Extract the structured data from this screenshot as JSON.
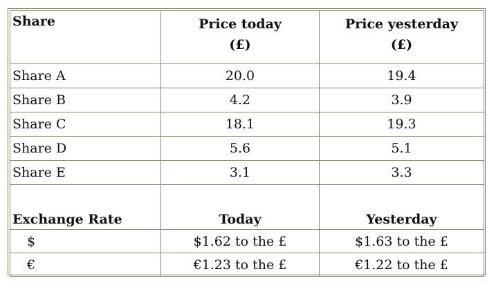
{
  "shares_table": {
    "headers": {
      "share": "Share",
      "price_today_line1": "Price today",
      "price_today_line2": "(£)",
      "price_yesterday_line1": "Price yesterday",
      "price_yesterday_line2": "(£)"
    },
    "rows": [
      {
        "name": "Share A",
        "today": "20.0",
        "yesterday": "19.4"
      },
      {
        "name": "Share B",
        "today": "4.2",
        "yesterday": "3.9"
      },
      {
        "name": "Share C",
        "today": "18.1",
        "yesterday": "19.3"
      },
      {
        "name": "Share D",
        "today": "5.6",
        "yesterday": "5.1"
      },
      {
        "name": "Share E",
        "today": "3.1",
        "yesterday": "3.3"
      }
    ]
  },
  "exchange_table": {
    "headers": {
      "label": "Exchange Rate",
      "today": "Today",
      "yesterday": "Yesterday"
    },
    "rows": [
      {
        "currency": "$",
        "today": "$1.62 to the £",
        "yesterday": "$1.63 to the £"
      },
      {
        "currency": "€",
        "today": "€1.23 to the £",
        "yesterday": "€1.22 to the £"
      }
    ]
  }
}
